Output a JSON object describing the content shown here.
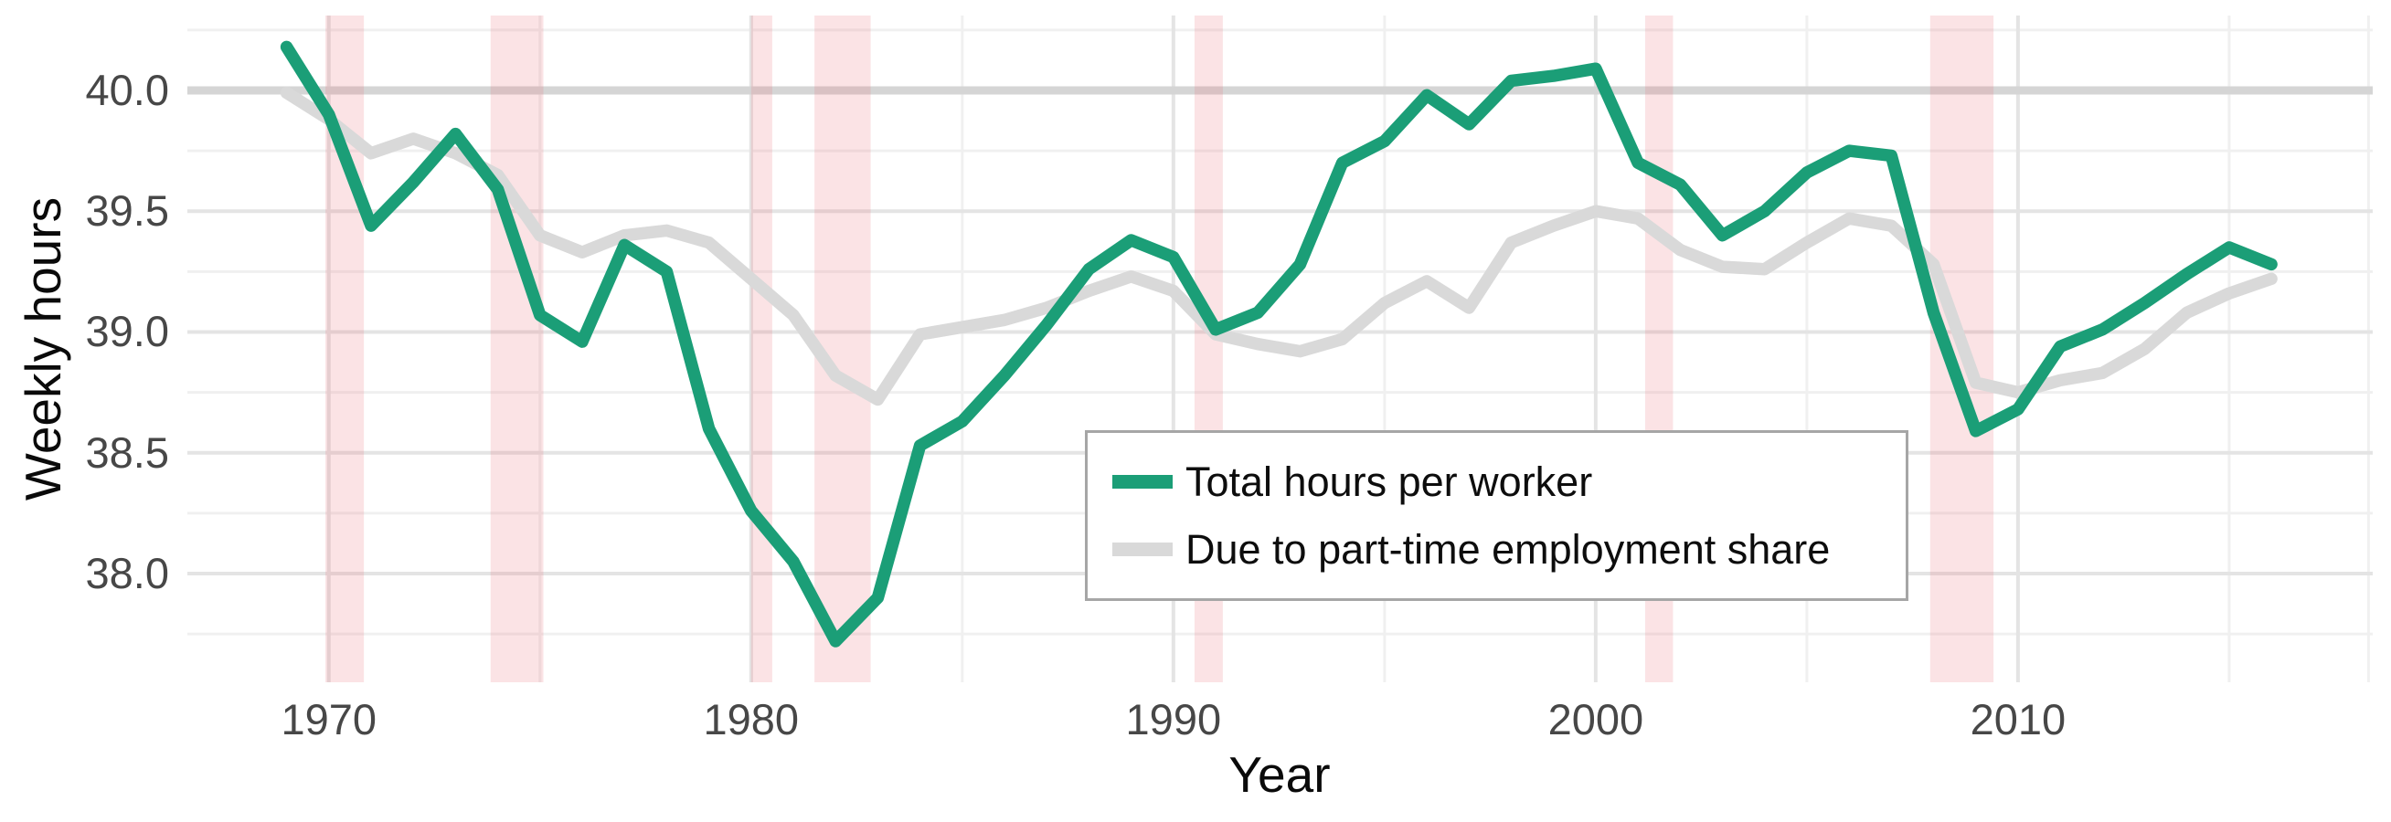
{
  "chart_data": {
    "type": "line",
    "title": "",
    "xlabel": "Year",
    "ylabel": "Weekly hours",
    "x": [
      1969,
      1970,
      1971,
      1972,
      1973,
      1974,
      1975,
      1976,
      1977,
      1978,
      1979,
      1980,
      1981,
      1982,
      1983,
      1984,
      1985,
      1986,
      1987,
      1988,
      1989,
      1990,
      1991,
      1992,
      1993,
      1994,
      1995,
      1996,
      1997,
      1998,
      1999,
      2000,
      2001,
      2002,
      2003,
      2004,
      2005,
      2006,
      2007,
      2008,
      2009,
      2010,
      2011,
      2012,
      2013,
      2014,
      2015,
      2016
    ],
    "series": [
      {
        "name": "Total hours per worker",
        "color": "#1b9e77",
        "values": [
          40.18,
          39.9,
          39.44,
          39.62,
          39.82,
          39.59,
          39.07,
          38.96,
          39.36,
          39.25,
          38.6,
          38.26,
          38.05,
          37.72,
          37.9,
          38.53,
          38.63,
          38.82,
          39.03,
          39.26,
          39.38,
          39.31,
          39.01,
          39.08,
          39.28,
          39.7,
          39.79,
          39.98,
          39.86,
          40.04,
          40.06,
          40.09,
          39.7,
          39.61,
          39.4,
          39.5,
          39.66,
          39.75,
          39.73,
          39.08,
          38.59,
          38.68,
          38.94,
          39.01,
          39.12,
          39.24,
          39.35,
          39.28
        ]
      },
      {
        "name": "Due to part-time employment share",
        "color": "#d9d9d9",
        "values": [
          39.99,
          39.88,
          39.74,
          39.8,
          39.74,
          39.65,
          39.4,
          39.33,
          39.4,
          39.42,
          39.37,
          39.22,
          39.07,
          38.82,
          38.72,
          38.99,
          39.02,
          39.05,
          39.1,
          39.17,
          39.23,
          39.17,
          38.99,
          38.95,
          38.92,
          38.97,
          39.12,
          39.21,
          39.1,
          39.37,
          39.44,
          39.5,
          39.47,
          39.34,
          39.27,
          39.26,
          39.37,
          39.47,
          39.44,
          39.28,
          38.79,
          38.75,
          38.8,
          38.83,
          38.93,
          39.08,
          39.16,
          39.22
        ]
      }
    ],
    "xlim": [
      1966.65,
      2018.4
    ],
    "ylim": [
      37.55,
      40.31
    ],
    "x_ticks": {
      "labels": [
        "1970",
        "1980",
        "1990",
        "2000",
        "2010"
      ],
      "major": [
        1970,
        1980,
        1990,
        2000,
        2010
      ],
      "minor": [
        1975,
        1985,
        1995,
        2005,
        2015,
        2018.3
      ]
    },
    "y_ticks": {
      "labels": [
        "38.0",
        "38.5",
        "39.0",
        "39.5",
        "40.0"
      ],
      "major": [
        38.0,
        38.5,
        39.0,
        39.5,
        40.0
      ],
      "minor": [
        37.75,
        38.25,
        38.75,
        39.25,
        39.75,
        40.25
      ]
    },
    "reference_line": {
      "y": 40.0,
      "color": "#d5d5d5",
      "width": 9
    },
    "recession_bands": [
      [
        1969.92,
        1970.83
      ],
      [
        1973.83,
        1975.08
      ],
      [
        1980.0,
        1980.5
      ],
      [
        1981.5,
        1982.83
      ],
      [
        1990.5,
        1991.17
      ],
      [
        2001.17,
        2001.83
      ],
      [
        2007.92,
        2009.42
      ]
    ],
    "band_color": "rgba(235,105,118,0.19)",
    "grid": {
      "major_color": "#e4e4e4",
      "minor_color": "#f0f0f0",
      "major_width": 4,
      "minor_width": 3
    },
    "legend_position": "inside-bottom-center"
  }
}
